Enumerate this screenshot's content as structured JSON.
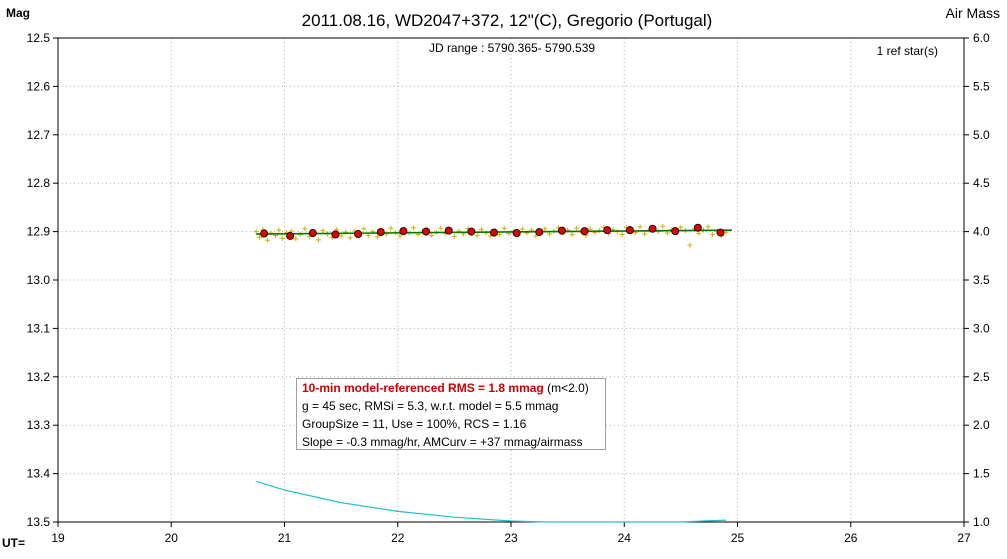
{
  "chart_data": {
    "type": "scatter",
    "title": "2011.08.16, WD2047+372, 12\"(C), Gregorio (Portugal)",
    "subtitle": "JD range : 5790.365- 5790.539",
    "ref_stars": "1 ref star(s)",
    "ylabel_left": "Mag",
    "ylabel_right": "Air Mass",
    "xlabel": "UT=",
    "x_ticks": [
      "19",
      "20",
      "21",
      "22",
      "23",
      "24",
      "25",
      "26",
      "27"
    ],
    "y_ticks": [
      "12.5",
      "12.6",
      "12.7",
      "12.8",
      "12.9",
      "13.0",
      "13.1",
      "13.2",
      "13.3",
      "13.4",
      "13.5"
    ],
    "y2_ticks": [
      "6.0",
      "5.5",
      "5.0",
      "4.5",
      "4.0",
      "3.5",
      "3.0",
      "2.5",
      "2.0",
      "1.5",
      "1.0"
    ],
    "xlim": [
      19,
      27
    ],
    "ylim": [
      12.5,
      13.5
    ],
    "y2lim": [
      1.0,
      6.0
    ],
    "grid": true,
    "colors": {
      "raw": "#d4b000",
      "binned": "#e00000",
      "model": "#007a00",
      "airmass": "#20c0c8",
      "grid": "#b0b0b0",
      "subtitle": "#1a237e"
    },
    "series": [
      {
        "kind": "binned",
        "x": [
          20.82,
          21.05,
          21.25,
          21.45,
          21.65,
          21.85,
          22.05,
          22.25,
          22.45,
          22.65,
          22.85,
          23.05,
          23.25,
          23.45,
          23.65,
          23.85,
          24.05,
          24.25,
          24.45,
          24.65,
          24.85
        ],
        "y": [
          12.904,
          12.909,
          12.903,
          12.906,
          12.905,
          12.901,
          12.899,
          12.9,
          12.898,
          12.9,
          12.902,
          12.903,
          12.901,
          12.898,
          12.899,
          12.897,
          12.897,
          12.894,
          12.899,
          12.892,
          12.902
        ]
      },
      {
        "kind": "raw",
        "x": [
          20.75,
          20.78,
          20.81,
          20.85,
          20.88,
          20.92,
          20.95,
          20.98,
          21.02,
          21.06,
          21.1,
          21.14,
          21.18,
          21.22,
          21.26,
          21.3,
          21.34,
          21.38,
          21.42,
          21.46,
          21.5,
          21.54,
          21.58,
          21.62,
          21.66,
          21.7,
          21.74,
          21.78,
          21.82,
          21.86,
          21.9,
          21.94,
          21.98,
          22.02,
          22.06,
          22.1,
          22.14,
          22.18,
          22.22,
          22.26,
          22.3,
          22.34,
          22.38,
          22.42,
          22.46,
          22.5,
          22.54,
          22.58,
          22.62,
          22.66,
          22.7,
          22.74,
          22.78,
          22.82,
          22.86,
          22.9,
          22.94,
          22.98,
          23.02,
          23.06,
          23.1,
          23.14,
          23.18,
          23.22,
          23.26,
          23.3,
          23.34,
          23.38,
          23.42,
          23.46,
          23.5,
          23.54,
          23.58,
          23.62,
          23.66,
          23.7,
          23.74,
          23.78,
          23.82,
          23.86,
          23.9,
          23.94,
          23.98,
          24.02,
          24.06,
          24.1,
          24.14,
          24.18,
          24.22,
          24.26,
          24.3,
          24.34,
          24.38,
          24.42,
          24.46,
          24.5,
          24.54,
          24.58,
          24.62,
          24.66,
          24.7,
          24.74,
          24.78,
          24.82,
          24.86,
          24.9
        ],
        "y": [
          12.9,
          12.912,
          12.896,
          12.918,
          12.903,
          12.908,
          12.897,
          12.914,
          12.902,
          12.899,
          12.915,
          12.906,
          12.894,
          12.91,
          12.903,
          12.917,
          12.898,
          12.905,
          12.912,
          12.896,
          12.909,
          12.901,
          12.913,
          12.899,
          12.904,
          12.894,
          12.908,
          12.9,
          12.911,
          12.897,
          12.905,
          12.893,
          12.902,
          12.909,
          12.896,
          12.903,
          12.892,
          12.906,
          12.899,
          12.895,
          12.908,
          12.901,
          12.893,
          12.904,
          12.897,
          12.91,
          12.899,
          12.905,
          12.894,
          12.902,
          12.908,
          12.896,
          12.903,
          12.909,
          12.898,
          12.906,
          12.893,
          12.904,
          12.9,
          12.908,
          12.895,
          12.903,
          12.897,
          12.909,
          12.901,
          12.894,
          12.905,
          12.899,
          12.892,
          12.903,
          12.897,
          12.906,
          12.893,
          12.901,
          12.908,
          12.895,
          12.902,
          12.898,
          12.891,
          12.904,
          12.896,
          12.9,
          12.906,
          12.892,
          12.898,
          12.902,
          12.89,
          12.905,
          12.897,
          12.893,
          12.9,
          12.889,
          12.903,
          12.896,
          12.899,
          12.891,
          12.898,
          12.928,
          12.894,
          12.904,
          12.897,
          12.89,
          12.906,
          12.899,
          12.908,
          12.901
        ]
      },
      {
        "kind": "model",
        "x": [
          20.75,
          24.95
        ],
        "y": [
          12.905,
          12.897
        ]
      },
      {
        "kind": "airmass",
        "axis": "right",
        "x": [
          20.75,
          21.0,
          21.5,
          22.0,
          22.5,
          23.0,
          23.3,
          23.6,
          24.0,
          24.2,
          24.5,
          24.7,
          24.9
        ],
        "y": [
          1.42,
          1.33,
          1.2,
          1.11,
          1.05,
          1.01,
          1.0,
          0.99,
          0.985,
          0.99,
          1.0,
          1.01,
          1.02
        ]
      }
    ]
  },
  "stats": {
    "line1_bold": "10-min model-referenced RMS = 1.8 mmag",
    "line1_sub": "(m<2.0)",
    "line2": "g = 45 sec, RMSi = 5.3, w.r.t. model = 5.5 mmag",
    "line3": "GroupSize = 11, Use = 100%, RCS = 1.16",
    "line4": "Slope = -0.3 mmag/hr, AMCurv = +37 mmag/airmass"
  }
}
